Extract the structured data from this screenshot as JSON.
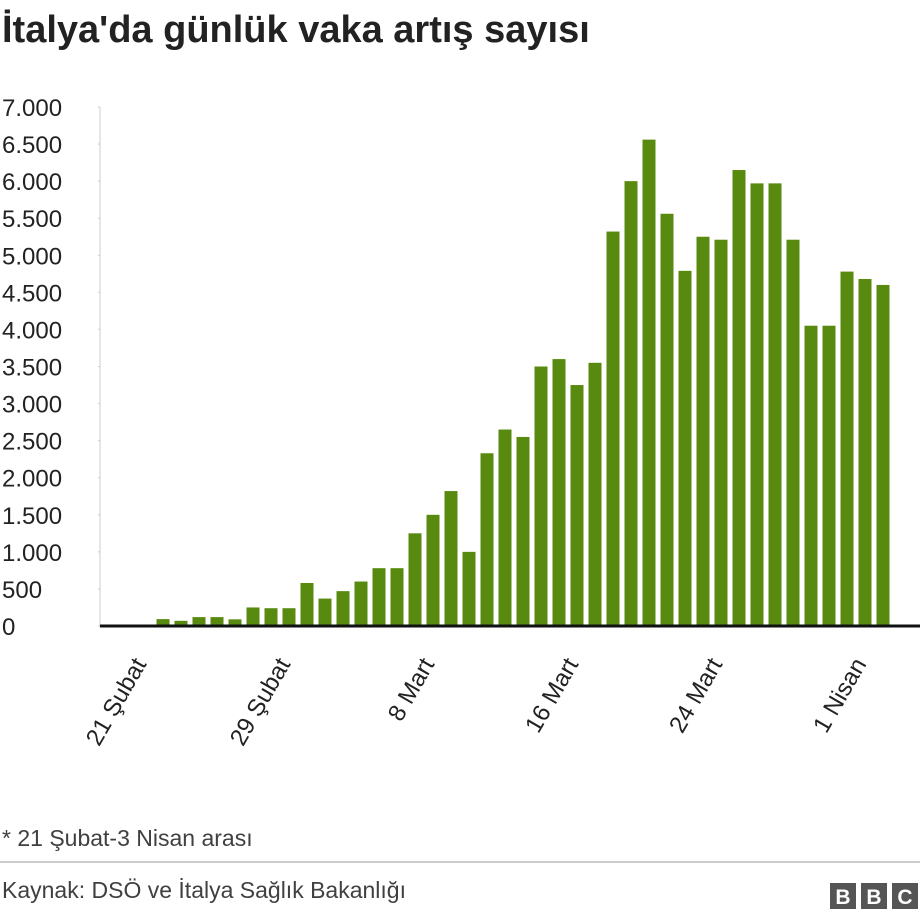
{
  "chart_data": {
    "type": "bar",
    "title": "İtalya'da günlük vaka artış sayısı",
    "categories": [
      "21 Şubat",
      null,
      null,
      null,
      null,
      null,
      null,
      null,
      "29 Şubat",
      null,
      null,
      null,
      null,
      null,
      null,
      null,
      "8 Mart",
      null,
      null,
      null,
      null,
      null,
      null,
      null,
      "16 Mart",
      null,
      null,
      null,
      null,
      null,
      null,
      null,
      "24 Mart",
      null,
      null,
      null,
      null,
      null,
      null,
      null,
      "1 Nisan",
      null,
      null
    ],
    "values": [
      0,
      0,
      93,
      70,
      120,
      120,
      90,
      250,
      240,
      240,
      580,
      370,
      470,
      600,
      780,
      780,
      1250,
      1500,
      1820,
      1000,
      2330,
      2650,
      2550,
      3500,
      3600,
      3250,
      3550,
      5320,
      6000,
      6560,
      5560,
      4790,
      5250,
      5210,
      6150,
      5970,
      5970,
      5210,
      4050,
      4050,
      4780,
      4680,
      4600
    ],
    "color": "#588a0f",
    "ylim": [
      0,
      7000
    ],
    "yticks": [
      0,
      500,
      {
        "value": 1000,
        "label": "1.000"
      },
      {
        "value": 1500,
        "label": "1.500"
      },
      {
        "value": 2000,
        "label": "2.000"
      },
      {
        "value": 2500,
        "label": "2.500"
      },
      {
        "value": 3000,
        "label": "3.000"
      },
      {
        "value": 3500,
        "label": "3.500"
      },
      {
        "value": 4000,
        "label": "4.000"
      },
      {
        "value": 4500,
        "label": "4.500"
      },
      {
        "value": 5000,
        "label": "5.000"
      },
      {
        "value": 5500,
        "label": "5.500"
      },
      {
        "value": 6000,
        "label": "6.000"
      },
      {
        "value": 6500,
        "label": "6.500"
      },
      {
        "value": 7000,
        "label": "7.000"
      }
    ],
    "note": "* 21 Şubat-3 Nisan arası",
    "source": "Kaynak: DSÖ ve İtalya Sağlık Bakanlığı"
  }
}
